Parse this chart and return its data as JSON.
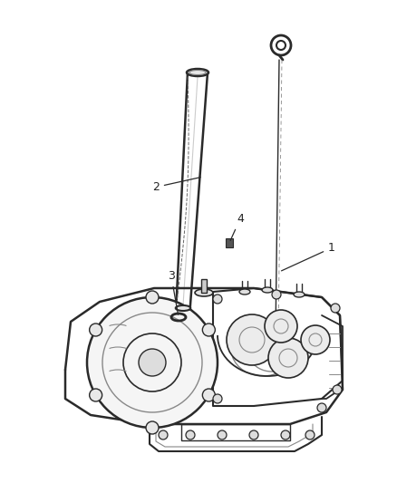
{
  "bg_color": "#ffffff",
  "lc": "#4a4a4a",
  "dc": "#2a2a2a",
  "gc": "#888888",
  "fig_width": 4.38,
  "fig_height": 5.33,
  "dpi": 100,
  "label_fs": 9,
  "label_color": "#222222"
}
